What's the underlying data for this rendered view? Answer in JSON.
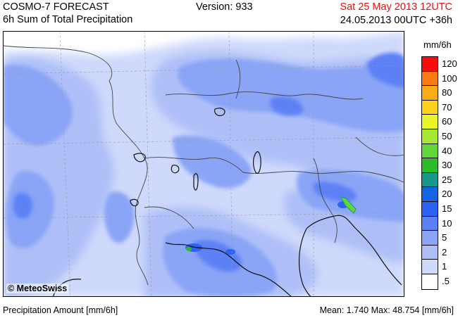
{
  "header": {
    "title": "COSMO-7 FORECAST",
    "subtitle": "6h Sum of Total Precipitation",
    "version": "Version: 933",
    "valid_time": "Sat 25 May 2013 12UTC",
    "run_time": "24.05.2013 00UTC +36h"
  },
  "map": {
    "copyright": "© MeteoSwiss"
  },
  "legend": {
    "unit": "mm/6h",
    "levels": [
      "120",
      "100",
      "80",
      "70",
      "60",
      "50",
      "40",
      "30",
      "25",
      "20",
      "15",
      "10",
      "5",
      "2",
      "1",
      ".5"
    ],
    "colors": [
      "#fc0d0d",
      "#fc7a14",
      "#fcab18",
      "#fcd21c",
      "#e8f529",
      "#a6e635",
      "#5fd63a",
      "#2dbb2a",
      "#18978a",
      "#1466e0",
      "#2e62f4",
      "#5d81f5",
      "#8aa5f6",
      "#aebff8",
      "#cfd9fb",
      "#ffffff"
    ]
  },
  "footer": {
    "label": "Precipitation Amount [mm/6h]",
    "stats": "Mean:  1.740 Max:  48.754 [mm/6h]"
  }
}
